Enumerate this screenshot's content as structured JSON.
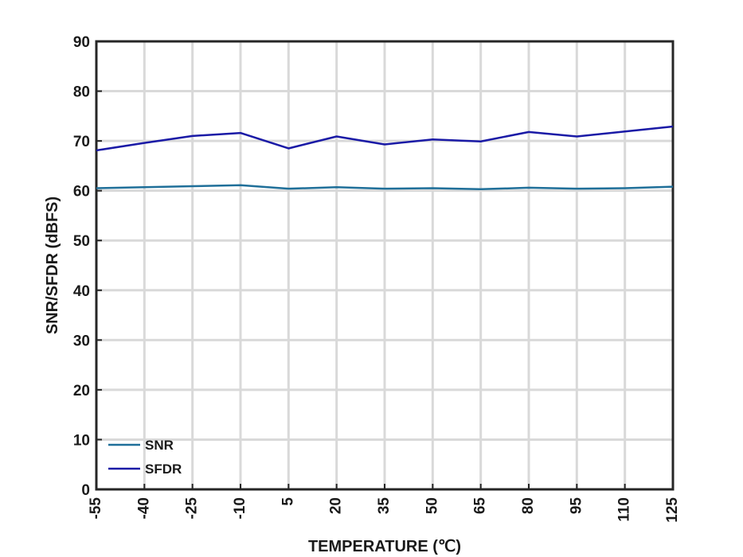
{
  "chart_data": {
    "type": "line",
    "xlabel": "TEMPERATURE (℃)",
    "ylabel": "SNR/SFDR (dBFS)",
    "x": [
      -55,
      -40,
      -25,
      -10,
      5,
      20,
      35,
      50,
      65,
      80,
      95,
      110,
      125
    ],
    "x_tick_labels": [
      "-55",
      "-40",
      "-25",
      "-10",
      "5",
      "20",
      "35",
      "50",
      "65",
      "80",
      "95",
      "110",
      "125"
    ],
    "y_ticks": [
      0,
      10,
      20,
      30,
      40,
      50,
      60,
      70,
      80,
      90
    ],
    "y_tick_labels": [
      "0",
      "10",
      "20",
      "30",
      "40",
      "50",
      "60",
      "70",
      "80",
      "90"
    ],
    "xlim": [
      -55,
      125
    ],
    "ylim": [
      0,
      90
    ],
    "grid": true,
    "legend_position": "bottom-left",
    "series": [
      {
        "name": "SNR",
        "color": "#1f6f99",
        "values": [
          60.5,
          60.7,
          60.9,
          61.1,
          60.4,
          60.7,
          60.4,
          60.5,
          60.3,
          60.6,
          60.4,
          60.5,
          60.8
        ]
      },
      {
        "name": "SFDR",
        "color": "#1a1aa6",
        "values": [
          68.1,
          69.6,
          71.0,
          71.6,
          68.5,
          70.9,
          69.3,
          70.3,
          69.9,
          71.8,
          70.9,
          71.9,
          72.9
        ]
      }
    ]
  }
}
